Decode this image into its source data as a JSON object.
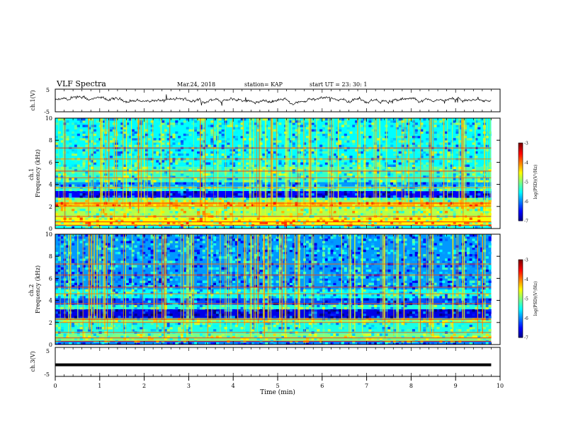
{
  "header": {
    "title": "VLF Spectra",
    "date": "Mar.24, 2018",
    "station": "station= KAP",
    "start": "start  UT =   23: 30: 1"
  },
  "chart_data": [
    {
      "type": "line",
      "panel": "ch1-waveform",
      "ylabel": "ch.1(V)",
      "ylim": [
        -5,
        5
      ],
      "yticks": [
        "5",
        "-5"
      ],
      "xlim": [
        0,
        10
      ],
      "series": [
        {
          "values_desc": "noisy waveform ~ -1 to 1 V",
          "mean": 0
        }
      ]
    },
    {
      "type": "heatmap",
      "panel": "ch1-spectrogram",
      "ylabel": "ch.1\nFrequency (kHz)",
      "ylabel_lines": [
        "ch.1",
        "Frequency (kHz)"
      ],
      "ylim": [
        0,
        10
      ],
      "yticks": [
        "0",
        "2",
        "4",
        "6",
        "8",
        "10"
      ],
      "xlim": [
        0,
        9.8
      ],
      "bands_khz": [
        {
          "lo": 0.0,
          "hi": 0.3,
          "level": -5.5
        },
        {
          "lo": 0.3,
          "hi": 1.0,
          "level": -4.5
        },
        {
          "lo": 1.0,
          "hi": 2.0,
          "level": -4.8
        },
        {
          "lo": 2.0,
          "hi": 2.4,
          "level": -4.2
        },
        {
          "lo": 2.4,
          "hi": 2.8,
          "level": -5.0
        },
        {
          "lo": 2.8,
          "hi": 3.4,
          "level": -6.5
        },
        {
          "lo": 3.4,
          "hi": 3.8,
          "level": -5.4
        },
        {
          "lo": 3.8,
          "hi": 4.2,
          "level": -5.9
        },
        {
          "lo": 4.2,
          "hi": 5.0,
          "level": -5.3
        },
        {
          "lo": 5.0,
          "hi": 5.6,
          "level": -5.2
        },
        {
          "lo": 5.6,
          "hi": 10.0,
          "level": -5.5
        }
      ],
      "colorbar": {
        "label": "log(PSD)(V²/Hz)",
        "ticks": [
          "-3",
          "-4",
          "-5",
          "-6",
          "-7"
        ],
        "range": [
          -7,
          -3
        ]
      }
    },
    {
      "type": "heatmap",
      "panel": "ch2-spectrogram",
      "ylabel": "ch.2\nFrequency (kHz)",
      "ylabel_lines": [
        "ch.2",
        "Frequency (kHz)"
      ],
      "ylim": [
        0,
        10
      ],
      "yticks": [
        "0",
        "2",
        "4",
        "6",
        "8",
        "10"
      ],
      "xlim": [
        0,
        9.8
      ],
      "bands_khz": [
        {
          "lo": 0.0,
          "hi": 0.3,
          "level": -6.0
        },
        {
          "lo": 0.3,
          "hi": 1.0,
          "level": -5.0
        },
        {
          "lo": 1.0,
          "hi": 2.0,
          "level": -5.4
        },
        {
          "lo": 2.0,
          "hi": 2.4,
          "level": -5.0
        },
        {
          "lo": 2.4,
          "hi": 3.2,
          "level": -6.6
        },
        {
          "lo": 3.2,
          "hi": 3.6,
          "level": -5.4
        },
        {
          "lo": 3.6,
          "hi": 4.2,
          "level": -6.2
        },
        {
          "lo": 4.2,
          "hi": 5.0,
          "level": -5.5
        },
        {
          "lo": 5.0,
          "hi": 10.0,
          "level": -5.9
        }
      ],
      "colorbar": {
        "label": "log(PSD)(V²/Hz)",
        "ticks": [
          "-3",
          "-4",
          "-5",
          "-6",
          "-7"
        ],
        "range": [
          -7,
          -3
        ]
      }
    },
    {
      "type": "line",
      "panel": "ch3-waveform",
      "ylabel": "ch.3(V)",
      "ylim": [
        -5,
        5
      ],
      "yticks": [
        "5",
        "-5"
      ],
      "xlim": [
        0,
        10
      ],
      "xlabel": "Time (min)",
      "xticks": [
        "0",
        "1",
        "2",
        "3",
        "4",
        "5",
        "6",
        "7",
        "8",
        "9",
        "10"
      ],
      "series": [
        {
          "constant": -1.0
        }
      ]
    }
  ]
}
